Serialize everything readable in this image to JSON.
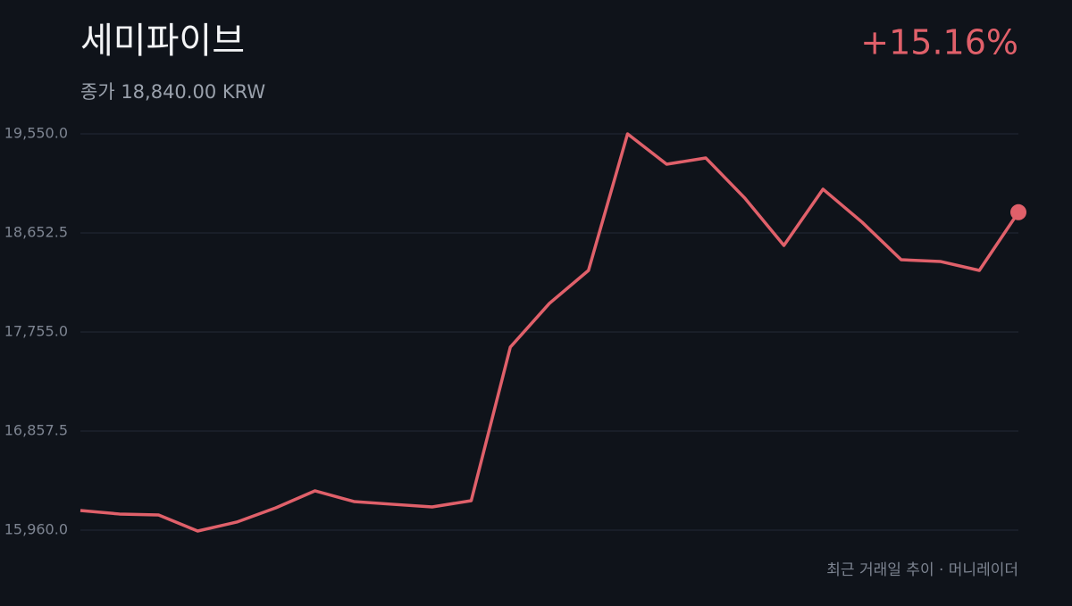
{
  "chart_data": {
    "type": "line",
    "title": "세미파이브",
    "subtitle": "종가 18,840.00 KRW",
    "change": "+15.16%",
    "footer": "최근 거래일 추이 · 머니레이더",
    "color": "#e0606a",
    "grid": true,
    "values": [
      16138,
      16106,
      16097,
      15952,
      16033,
      16162,
      16316,
      16219,
      16194,
      16170,
      16227,
      17618,
      18014,
      18313,
      19550,
      19275,
      19332,
      18968,
      18539,
      19049,
      18750,
      18410,
      18394,
      18313,
      18840
    ],
    "ylim": [
      15960,
      19550
    ],
    "yticks": [
      {
        "value": 19550,
        "label": "19,550.0"
      },
      {
        "value": 18652.5,
        "label": "18,652.5"
      },
      {
        "value": 17755,
        "label": "17,755.0"
      },
      {
        "value": 16857.5,
        "label": "16,857.5"
      },
      {
        "value": 15960,
        "label": "15,960.0"
      }
    ]
  }
}
